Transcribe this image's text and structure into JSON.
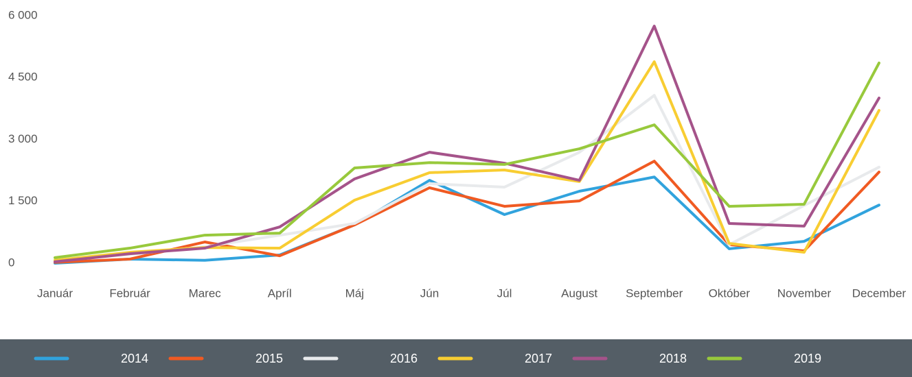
{
  "chart_data": {
    "type": "line",
    "categories": [
      "Január",
      "Február",
      "Marec",
      "Apríl",
      "Máj",
      "Jún",
      "Júl",
      "August",
      "September",
      "Október",
      "November",
      "December"
    ],
    "series": [
      {
        "name": "2014",
        "color": "#31a3dd",
        "values": [
          0,
          100,
          70,
          200,
          930,
          2010,
          1180,
          1745,
          2090,
          350,
          530,
          1410
        ]
      },
      {
        "name": "2015",
        "color": "#f05a22",
        "values": [
          20,
          100,
          515,
          180,
          930,
          1830,
          1380,
          1510,
          2475,
          450,
          300,
          2210
        ]
      },
      {
        "name": "2016",
        "color": "#e8eaec",
        "values": [
          50,
          215,
          400,
          680,
          965,
          1930,
          1845,
          2690,
          4070,
          450,
          1400,
          2330
        ]
      },
      {
        "name": "2017",
        "color": "#f8cd32",
        "values": [
          70,
          265,
          380,
          365,
          1530,
          2195,
          2260,
          1980,
          4885,
          480,
          265,
          3705
        ]
      },
      {
        "name": "2018",
        "color": "#a5538a",
        "values": [
          35,
          230,
          365,
          880,
          2045,
          2690,
          2425,
          2010,
          5750,
          965,
          900,
          4005
        ]
      },
      {
        "name": "2019",
        "color": "#98c93c",
        "values": [
          135,
          365,
          680,
          730,
          2310,
          2440,
          2395,
          2775,
          3355,
          1380,
          1430,
          4855
        ]
      }
    ],
    "ylim": [
      0,
      6000
    ],
    "yticks": [
      0,
      {
        "value": 1500,
        "label": "1 500"
      },
      {
        "value": 3000,
        "label": "3 000"
      },
      {
        "value": 4500,
        "label": "4 500"
      },
      {
        "value": 6000,
        "label": "6 000"
      }
    ],
    "grid": false,
    "legend": "bottom"
  }
}
